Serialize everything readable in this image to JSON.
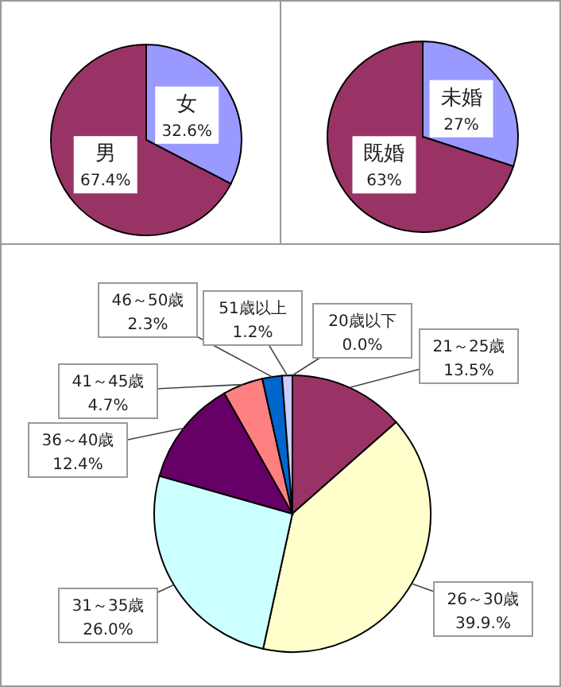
{
  "chart_data": [
    {
      "type": "pie",
      "categories": [
        "女",
        "男"
      ],
      "values": [
        32.6,
        67.4
      ],
      "colors": [
        "#9999ff",
        "#993366"
      ],
      "value_labels": [
        "32.6%",
        "67.4%"
      ]
    },
    {
      "type": "pie",
      "categories": [
        "未婚",
        "既婚"
      ],
      "values": [
        27,
        63
      ],
      "colors": [
        "#9999ff",
        "#993366"
      ],
      "value_labels": [
        "27%",
        "63%"
      ]
    },
    {
      "type": "pie",
      "categories": [
        "20歳以下",
        "21～25歳",
        "26～30歳",
        "31～35歳",
        "36～40歳",
        "41～45歳",
        "46～50歳",
        "51歳以上"
      ],
      "values": [
        0.0,
        13.5,
        39.9,
        26.0,
        12.4,
        4.7,
        2.3,
        1.2
      ],
      "colors": [
        "#9999ff",
        "#993366",
        "#ffffcc",
        "#ccffff",
        "#660066",
        "#ff8080",
        "#0066cc",
        "#ccccff"
      ],
      "value_labels": [
        "0.0%",
        "13.5%",
        "39.9.%",
        "26.0%",
        "12.4%",
        "4.7%",
        "2.3%",
        "1.2%"
      ]
    }
  ]
}
